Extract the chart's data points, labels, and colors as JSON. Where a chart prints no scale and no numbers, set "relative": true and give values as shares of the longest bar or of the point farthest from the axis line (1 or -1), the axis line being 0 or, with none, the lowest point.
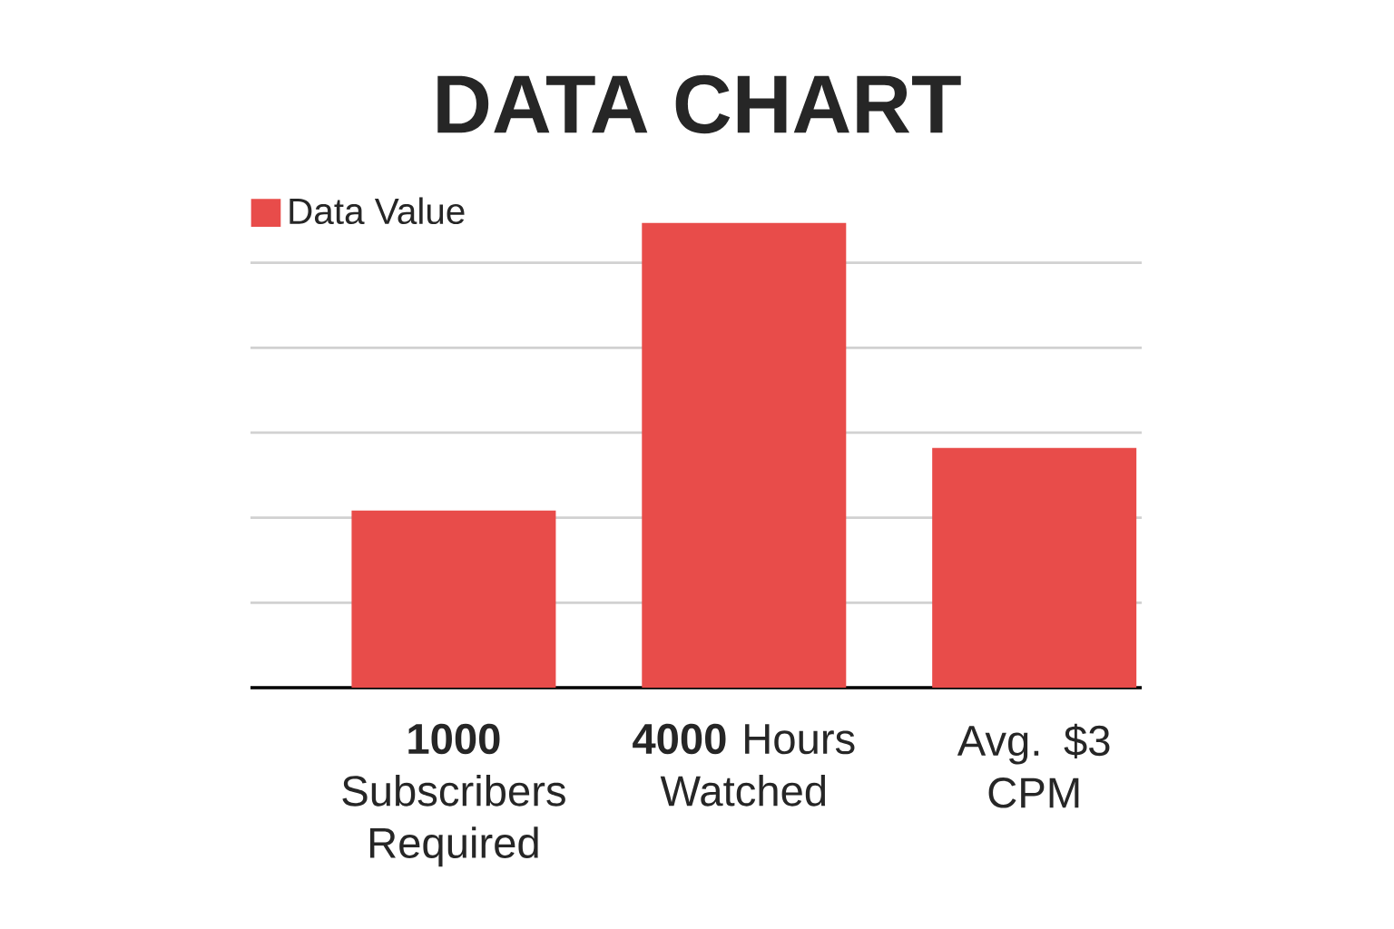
{
  "chart_data": {
    "type": "bar",
    "title": "DATA CHART",
    "relative": true,
    "categories": [
      "**1000** Subscribers Required",
      "**4000** Hours Watched",
      "Avg. $3 CPM"
    ],
    "series": [
      {
        "name": "Data Value",
        "color": "#e84c4a",
        "values": [
          0.381,
          1,
          0.516
        ]
      }
    ],
    "grid": "y",
    "legend": "top left"
  }
}
